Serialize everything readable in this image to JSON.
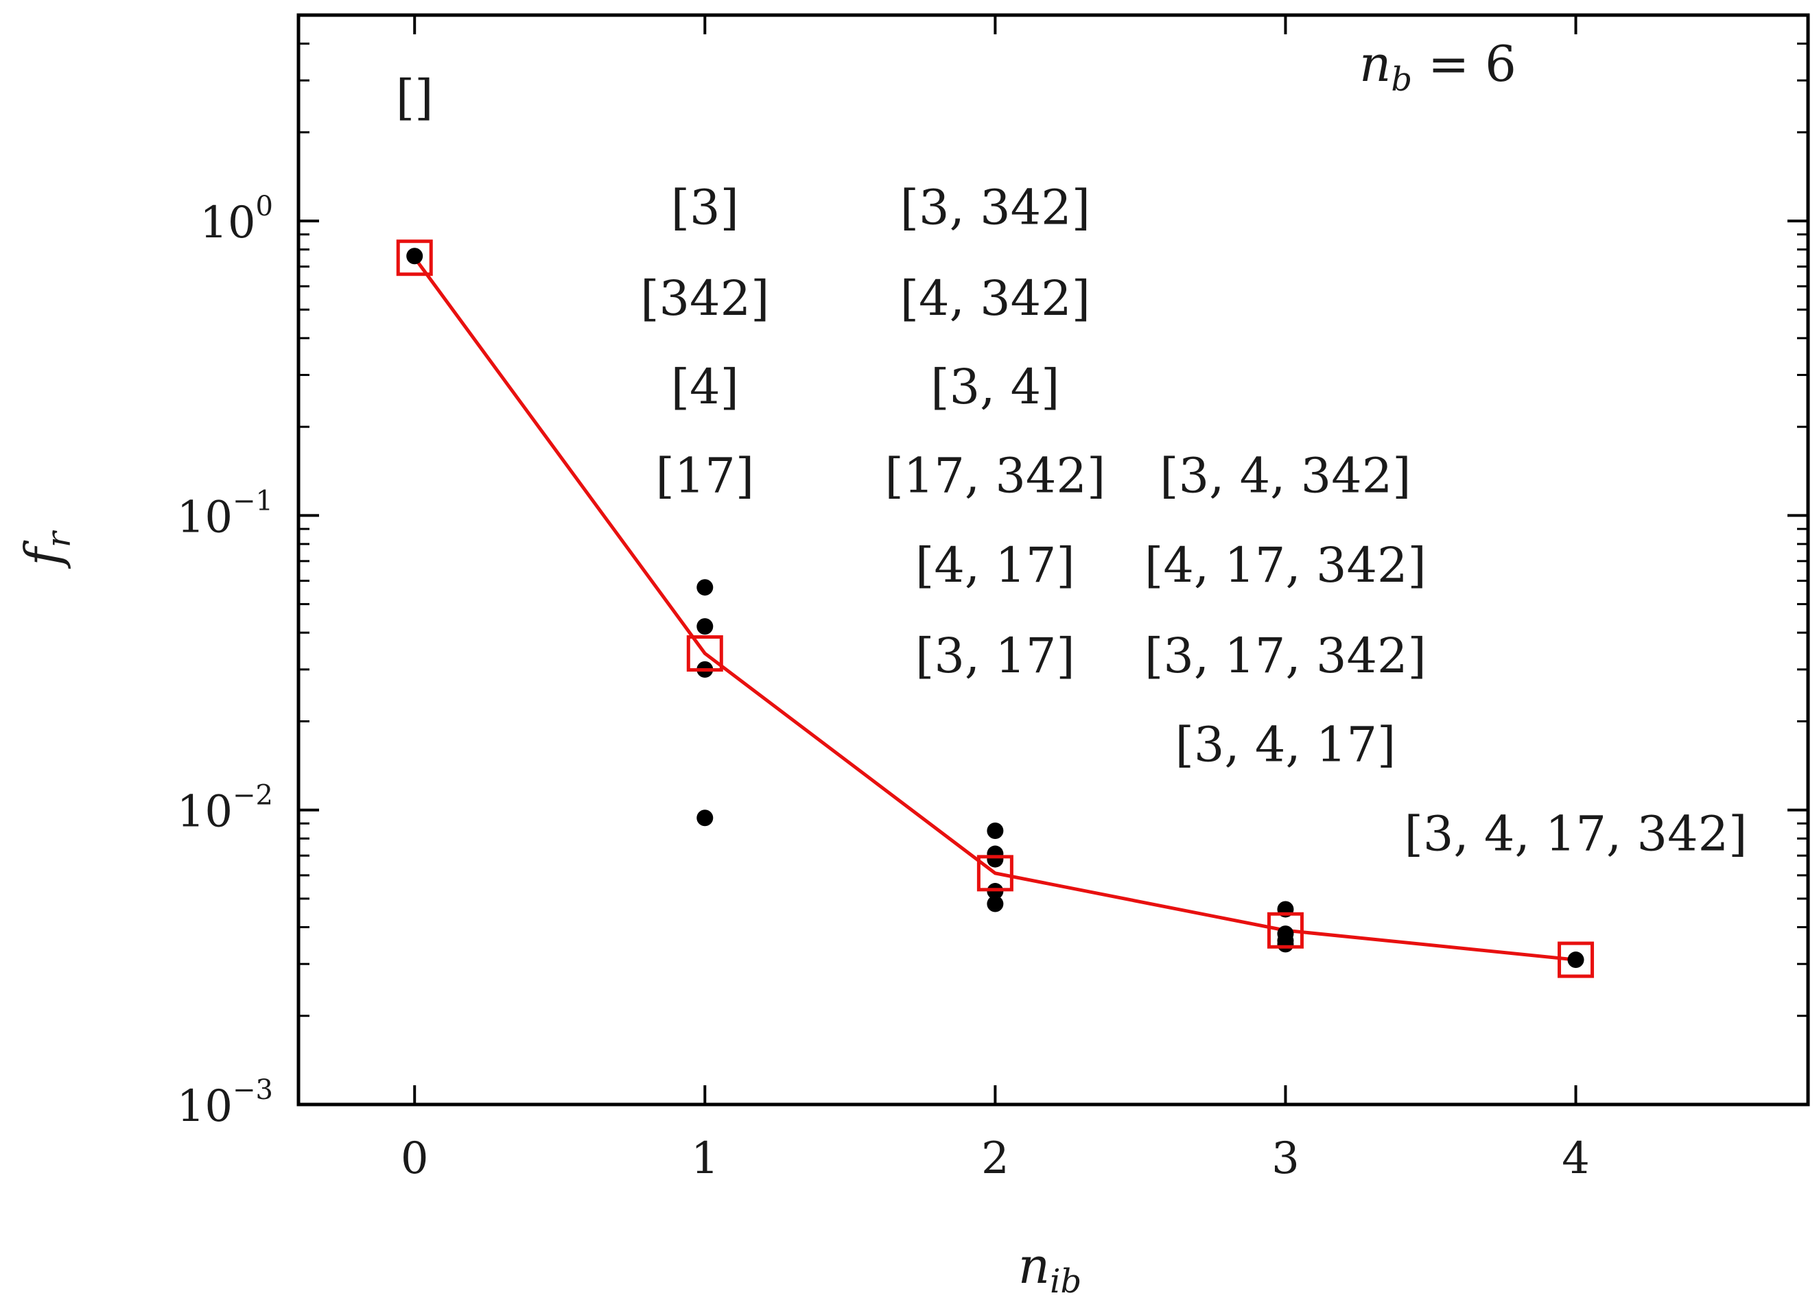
{
  "chart_data": {
    "type": "line",
    "title": "",
    "xlabel": {
      "base": "n",
      "sub": "ib"
    },
    "ylabel": {
      "base": "f",
      "sub": "r"
    },
    "xlim": [
      -0.4,
      4.8
    ],
    "ylim": [
      0.001,
      5
    ],
    "yscale": "log",
    "xticks": [
      0,
      1,
      2,
      3,
      4
    ],
    "yticks": [
      {
        "value": 1,
        "base": "10",
        "exp": "0"
      },
      {
        "value": 0.1,
        "base": "10",
        "exp": "−1"
      },
      {
        "value": 0.01,
        "base": "10",
        "exp": "−2"
      },
      {
        "value": 0.001,
        "base": "10",
        "exp": "−3"
      }
    ],
    "grid": false,
    "annotation_nb": {
      "base": "n",
      "sub": "b",
      "rest": " = 6"
    },
    "series": [
      {
        "kind": "scatter",
        "color": "#000000",
        "points": [
          {
            "x": 0,
            "y": 0.76
          },
          {
            "x": 1,
            "y": 0.057
          },
          {
            "x": 1,
            "y": 0.042
          },
          {
            "x": 1,
            "y": 0.03
          },
          {
            "x": 1,
            "y": 0.0094
          },
          {
            "x": 2,
            "y": 0.0085
          },
          {
            "x": 2,
            "y": 0.0071
          },
          {
            "x": 2,
            "y": 0.0068
          },
          {
            "x": 2,
            "y": 0.0053
          },
          {
            "x": 2,
            "y": 0.0048
          },
          {
            "x": 3,
            "y": 0.0046
          },
          {
            "x": 3,
            "y": 0.0038
          },
          {
            "x": 3,
            "y": 0.0036
          },
          {
            "x": 3,
            "y": 0.0035
          },
          {
            "x": 4,
            "y": 0.0031
          }
        ]
      },
      {
        "kind": "line-squares",
        "color": "#e8100f",
        "points": [
          {
            "x": 0,
            "y": 0.75
          },
          {
            "x": 1,
            "y": 0.034
          },
          {
            "x": 2,
            "y": 0.0061
          },
          {
            "x": 3,
            "y": 0.0039
          },
          {
            "x": 4,
            "y": 0.0031
          }
        ]
      }
    ],
    "labels": [
      {
        "x": 0,
        "y": 2.6,
        "text": "[]"
      },
      {
        "x": 1,
        "y": 1.1,
        "text": "[3]"
      },
      {
        "x": 1,
        "y": 0.54,
        "text": "[342]"
      },
      {
        "x": 1,
        "y": 0.27,
        "text": "[4]"
      },
      {
        "x": 1,
        "y": 0.135,
        "text": "[17]"
      },
      {
        "x": 2,
        "y": 1.1,
        "text": "[3, 342]"
      },
      {
        "x": 2,
        "y": 0.54,
        "text": "[4, 342]"
      },
      {
        "x": 2,
        "y": 0.27,
        "text": "[3, 4]"
      },
      {
        "x": 2,
        "y": 0.135,
        "text": "[17, 342]"
      },
      {
        "x": 2,
        "y": 0.067,
        "text": "[4, 17]"
      },
      {
        "x": 2,
        "y": 0.033,
        "text": "[3, 17]"
      },
      {
        "x": 3,
        "y": 0.135,
        "text": "[3, 4, 342]"
      },
      {
        "x": 3,
        "y": 0.067,
        "text": "[4, 17, 342]"
      },
      {
        "x": 3,
        "y": 0.033,
        "text": "[3, 17, 342]"
      },
      {
        "x": 3,
        "y": 0.0165,
        "text": "[3, 4, 17]"
      },
      {
        "x": 4,
        "y": 0.0082,
        "text": "[3, 4, 17, 342]"
      }
    ]
  }
}
